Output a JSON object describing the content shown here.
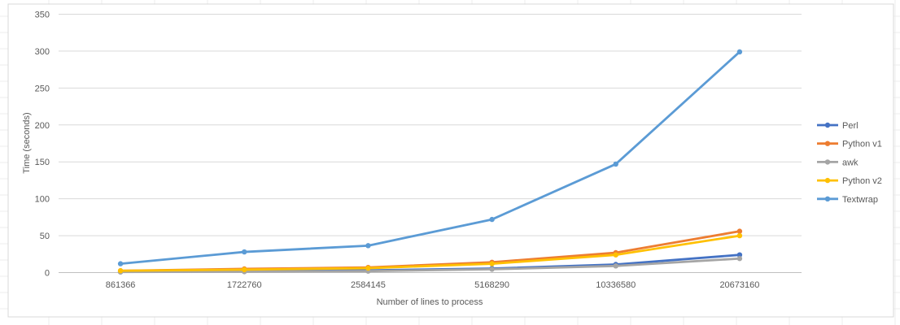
{
  "chart_data": {
    "type": "line",
    "categories": [
      "861366",
      "1722760",
      "2584145",
      "5168290",
      "10336580",
      "20673160"
    ],
    "xlabel": "Number of lines to process",
    "ylabel": "Time (seconds)",
    "ylim": [
      0,
      350
    ],
    "yticks": [
      0,
      50,
      100,
      150,
      200,
      250,
      300,
      350
    ],
    "grid": true,
    "legend_position": "right",
    "series": [
      {
        "name": "Perl",
        "color": "#4472C4",
        "values": [
          1,
          2.5,
          3,
          5.5,
          11,
          24
        ]
      },
      {
        "name": "Python v1",
        "color": "#ED7D31",
        "values": [
          2.5,
          5,
          7,
          14,
          27,
          56
        ]
      },
      {
        "name": "awk",
        "color": "#A5A5A5",
        "values": [
          0.8,
          1.2,
          2,
          4.5,
          9,
          19
        ]
      },
      {
        "name": "Python v2",
        "color": "#FFC000",
        "values": [
          2.5,
          4,
          6,
          12,
          24,
          50
        ]
      },
      {
        "name": "Textwrap",
        "color": "#5B9BD5",
        "values": [
          12,
          28,
          36.5,
          72,
          147,
          299
        ]
      }
    ]
  }
}
